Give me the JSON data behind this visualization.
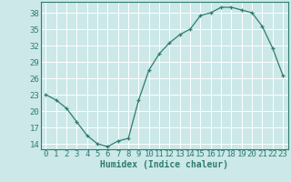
{
  "x": [
    0,
    1,
    2,
    3,
    4,
    5,
    6,
    7,
    8,
    9,
    10,
    11,
    12,
    13,
    14,
    15,
    16,
    17,
    18,
    19,
    20,
    21,
    22,
    23
  ],
  "y": [
    23,
    22,
    20.5,
    18,
    15.5,
    14,
    13.5,
    14.5,
    15,
    22,
    27.5,
    30.5,
    32.5,
    34,
    35,
    37.5,
    38,
    39,
    39,
    38.5,
    38,
    35.5,
    31.5,
    26.5
  ],
  "line_color": "#2e7d6e",
  "marker": "+",
  "background_color": "#cce8e8",
  "grid_color": "#ffffff",
  "axis_color": "#2e7d6e",
  "xlabel": "Humidex (Indice chaleur)",
  "xlim": [
    -0.5,
    23.5
  ],
  "ylim": [
    13,
    40
  ],
  "yticks": [
    14,
    17,
    20,
    23,
    26,
    29,
    32,
    35,
    38
  ],
  "xticks": [
    0,
    1,
    2,
    3,
    4,
    5,
    6,
    7,
    8,
    9,
    10,
    11,
    12,
    13,
    14,
    15,
    16,
    17,
    18,
    19,
    20,
    21,
    22,
    23
  ],
  "fontsize_label": 7,
  "fontsize_tick": 6.5
}
